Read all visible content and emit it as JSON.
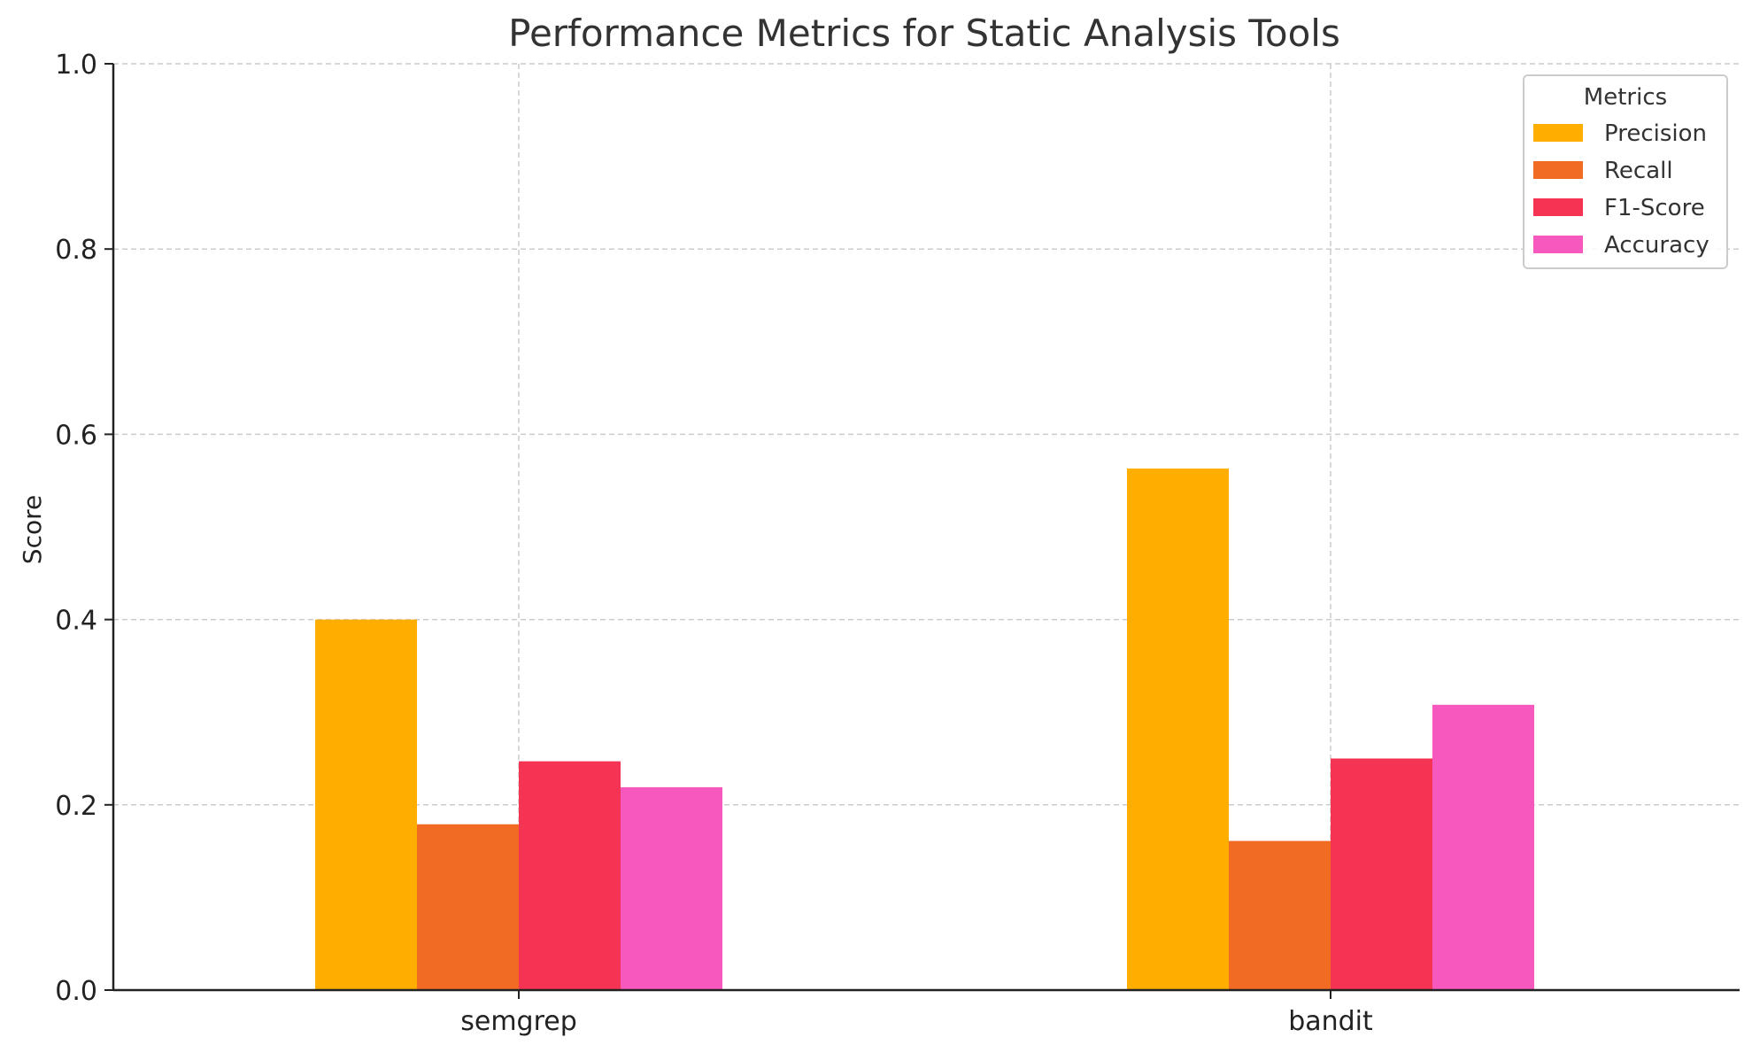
{
  "chart_data": {
    "type": "bar",
    "title": "Performance Metrics for Static Analysis Tools",
    "xlabel": "",
    "ylabel": "Score",
    "categories": [
      "semgrep",
      "bandit"
    ],
    "ylim": [
      0,
      1
    ],
    "yticks": [
      "0.0",
      "0.2",
      "0.4",
      "0.6",
      "0.8",
      "1.0"
    ],
    "grid": true,
    "legend": {
      "title": "Metrics",
      "placement": "top-right"
    },
    "series": [
      {
        "name": "Precision",
        "color": "#FFAE00",
        "values": [
          0.4,
          0.563
        ]
      },
      {
        "name": "Recall",
        "color": "#F26B22",
        "values": [
          0.179,
          0.161
        ]
      },
      {
        "name": "F1-Score",
        "color": "#F53353",
        "values": [
          0.247,
          0.25
        ]
      },
      {
        "name": "Accuracy",
        "color": "#F758BE",
        "values": [
          0.219,
          0.308
        ]
      }
    ]
  }
}
